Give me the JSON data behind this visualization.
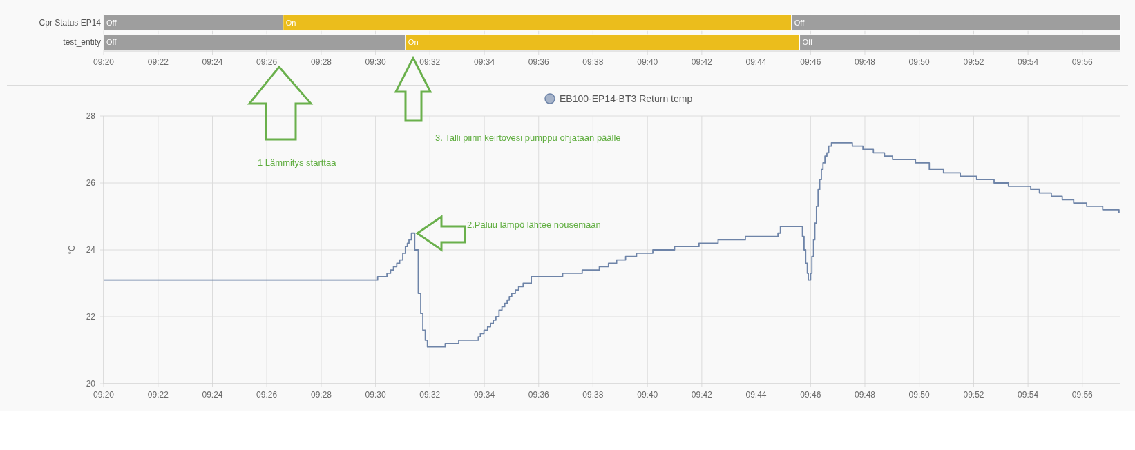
{
  "chart_data": [
    {
      "type": "bar",
      "orientation": "horizontal",
      "categories": [
        "Cpr Status EP14",
        "test_entity"
      ],
      "xlim": [
        9.3333,
        9.9567
      ],
      "grid": "x",
      "xticks": [
        {
          "value": 9.3333,
          "label": "09:20"
        },
        {
          "value": 9.3667,
          "label": "09:22"
        },
        {
          "value": 9.4,
          "label": "09:24"
        },
        {
          "value": 9.4333,
          "label": "09:26"
        },
        {
          "value": 9.4667,
          "label": "09:28"
        },
        {
          "value": 9.5,
          "label": "09:30"
        },
        {
          "value": 9.5333,
          "label": "09:32"
        },
        {
          "value": 9.5667,
          "label": "09:34"
        },
        {
          "value": 9.6,
          "label": "09:36"
        },
        {
          "value": 9.6333,
          "label": "09:38"
        },
        {
          "value": 9.6667,
          "label": "09:40"
        },
        {
          "value": 9.7,
          "label": "09:42"
        },
        {
          "value": 9.7333,
          "label": "09:44"
        },
        {
          "value": 9.7667,
          "label": "09:46"
        },
        {
          "value": 9.8,
          "label": "09:48"
        },
        {
          "value": 9.8333,
          "label": "09:50"
        },
        {
          "value": 9.8667,
          "label": "09:52"
        },
        {
          "value": 9.9,
          "label": "09:54"
        },
        {
          "value": 9.9333,
          "label": "09:56"
        }
      ],
      "series": [
        {
          "color": "#9e9e9e",
          "base": [
            9.3333,
            9.3333
          ],
          "values": [
            0.11,
            0.185
          ],
          "value_labels": [
            "Off",
            "Off"
          ]
        },
        {
          "color": "#ebbd1c",
          "base": [
            9.4433,
            9.5183
          ],
          "values": [
            0.3117,
            0.2417
          ],
          "value_labels": [
            "On",
            "On"
          ]
        },
        {
          "color": "#9e9e9e",
          "base": [
            9.755,
            9.76
          ],
          "values": [
            0.2017,
            0.1967
          ],
          "value_labels": [
            "Off",
            "Off"
          ]
        }
      ]
    },
    {
      "type": "step",
      "ylabel": "°C",
      "ylim": [
        20,
        28
      ],
      "yticks": [
        20,
        22,
        24,
        26,
        28
      ],
      "xlim": [
        9.3333,
        9.9567
      ],
      "grid": true,
      "legend": "top",
      "xticks": [
        {
          "value": 9.3333,
          "label": "09:20"
        },
        {
          "value": 9.3667,
          "label": "09:22"
        },
        {
          "value": 9.4,
          "label": "09:24"
        },
        {
          "value": 9.4333,
          "label": "09:26"
        },
        {
          "value": 9.4667,
          "label": "09:28"
        },
        {
          "value": 9.5,
          "label": "09:30"
        },
        {
          "value": 9.5333,
          "label": "09:32"
        },
        {
          "value": 9.5667,
          "label": "09:34"
        },
        {
          "value": 9.6,
          "label": "09:36"
        },
        {
          "value": 9.6333,
          "label": "09:38"
        },
        {
          "value": 9.6667,
          "label": "09:40"
        },
        {
          "value": 9.7,
          "label": "09:42"
        },
        {
          "value": 9.7333,
          "label": "09:44"
        },
        {
          "value": 9.7667,
          "label": "09:46"
        },
        {
          "value": 9.8,
          "label": "09:48"
        },
        {
          "value": 9.8333,
          "label": "09:50"
        },
        {
          "value": 9.8667,
          "label": "09:52"
        },
        {
          "value": 9.9,
          "label": "09:54"
        },
        {
          "value": 9.9333,
          "label": "09:56"
        }
      ],
      "annotations": [
        "1  Lämmitys starttaa",
        "2.Paluu lämpö lähtee nousemaan",
        "3. Talli piirin keirtovesi pumppu ohjataan päälle"
      ],
      "series": [
        {
          "name": "EB100-EP14-BT3 Return temp",
          "color": "#6e84a8",
          "x": [
            9.3333,
            9.5013,
            9.507,
            9.5092,
            9.511,
            9.513,
            9.5148,
            9.5167,
            9.5183,
            9.5195,
            9.5205,
            9.522,
            9.524,
            9.5262,
            9.5277,
            9.529,
            9.5305,
            9.5318,
            9.5427,
            9.551,
            9.563,
            9.5643,
            9.5665,
            9.5687,
            9.5705,
            9.5722,
            9.5738,
            9.5757,
            9.5775,
            9.5792,
            9.5807,
            9.582,
            9.5835,
            9.5857,
            9.5877,
            9.5905,
            9.5955,
            9.6147,
            9.6267,
            9.6372,
            9.6428,
            9.6478,
            9.6533,
            9.66,
            9.67,
            9.6833,
            9.6983,
            9.71,
            9.7267,
            9.7467,
            9.7482,
            9.7617,
            9.7627,
            9.7637,
            9.7647,
            9.7653,
            9.7667,
            9.7675,
            9.7685,
            9.7693,
            9.7703,
            9.7713,
            9.7723,
            9.7733,
            9.7743,
            9.7755,
            9.7767,
            9.7778,
            9.7795,
            9.7923,
            9.7988,
            9.8052,
            9.812,
            9.817,
            9.831,
            9.8395,
            9.8482,
            9.8585,
            9.8685,
            9.8792,
            9.888,
            9.9017,
            9.907,
            9.9143,
            9.921,
            9.928,
            9.936,
            9.9458,
            9.9558
          ],
          "values": [
            23.1,
            23.2,
            23.3,
            23.4,
            23.5,
            23.6,
            23.7,
            23.9,
            24.1,
            24.2,
            24.3,
            24.5,
            24.0,
            22.7,
            22.1,
            21.6,
            21.3,
            21.1,
            21.2,
            21.3,
            21.4,
            21.5,
            21.6,
            21.7,
            21.8,
            21.9,
            22.0,
            22.2,
            22.3,
            22.4,
            22.5,
            22.6,
            22.7,
            22.8,
            22.9,
            23.0,
            23.2,
            23.3,
            23.4,
            23.5,
            23.6,
            23.7,
            23.8,
            23.9,
            24.0,
            24.1,
            24.2,
            24.3,
            24.4,
            24.5,
            24.7,
            24.4,
            24.0,
            23.6,
            23.3,
            23.1,
            23.3,
            23.8,
            24.3,
            24.8,
            25.3,
            25.8,
            26.1,
            26.4,
            26.6,
            26.8,
            26.9,
            27.1,
            27.2,
            27.1,
            27.0,
            26.9,
            26.8,
            26.7,
            26.6,
            26.4,
            26.3,
            26.2,
            26.1,
            26.0,
            25.9,
            25.8,
            25.7,
            25.6,
            25.5,
            25.4,
            25.3,
            25.2,
            25.1
          ]
        }
      ]
    }
  ]
}
